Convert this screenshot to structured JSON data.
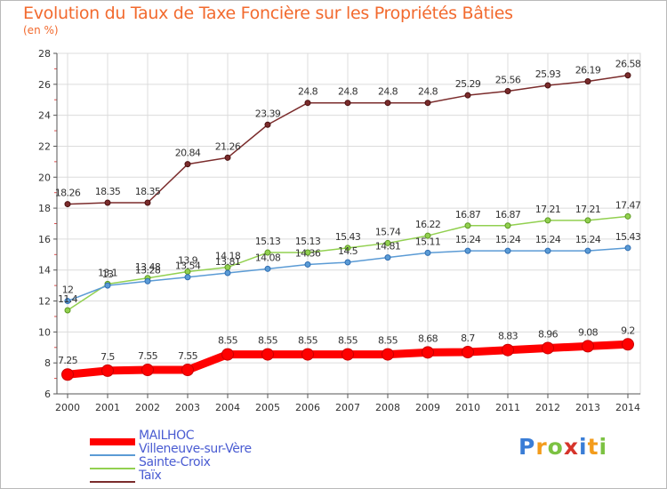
{
  "title": "Evolution du Taux de Taxe Foncière sur les Propriétés Bâties",
  "unit_label": "(en %)",
  "logo": {
    "text": "Proxiti",
    "colors": [
      "#3a7dd6",
      "#f39c1c",
      "#7cc242",
      "#d6342b",
      "#3a7dd6",
      "#f39c1c",
      "#7cc242"
    ]
  },
  "chart_data": {
    "type": "line",
    "title": "Evolution du Taux de Taxe Foncière sur les Propriétés Bâties",
    "ylabel": "(en %)",
    "xlabel": "",
    "x": [
      "2000",
      "2001",
      "2002",
      "2003",
      "2004",
      "2005",
      "2006",
      "2007",
      "2008",
      "2009",
      "2010",
      "2011",
      "2012",
      "2013",
      "2014"
    ],
    "ylim": [
      6,
      28
    ],
    "yticks": [
      6,
      8,
      10,
      12,
      14,
      16,
      18,
      20,
      22,
      24,
      26,
      28
    ],
    "grid": true,
    "legend_position": "bottom-left",
    "series": [
      {
        "name": "MAILHOC",
        "color": "#ff0000",
        "values": [
          7.25,
          7.5,
          7.55,
          7.55,
          8.55,
          8.55,
          8.55,
          8.55,
          8.55,
          8.68,
          8.7,
          8.83,
          8.96,
          9.08,
          9.2
        ],
        "labels": [
          "7.25",
          "7.5",
          "7.55",
          "7.55",
          "8.55",
          "8.55",
          "8.55",
          "8.55",
          "8.55",
          "8.68",
          "8.7",
          "8.83",
          "8.96",
          "9.08",
          "9.2"
        ]
      },
      {
        "name": "Villeneuve-sur-Vère",
        "color": "#5b9bd5",
        "values": [
          12,
          13,
          13.28,
          13.54,
          13.81,
          14.08,
          14.36,
          14.5,
          14.81,
          15.11,
          15.24,
          15.24,
          15.24,
          15.24,
          15.43
        ],
        "labels": [
          "12",
          "13",
          "13.28",
          "13.54",
          "13.81",
          "14.08",
          "14.36",
          "14.5",
          "14.81",
          "15.11",
          "15.24",
          "15.24",
          "15.24",
          "15.24",
          "15.43"
        ]
      },
      {
        "name": "Sainte-Croix",
        "color": "#92d050",
        "values": [
          11.4,
          13.1,
          13.48,
          13.9,
          14.18,
          15.13,
          15.13,
          15.43,
          15.74,
          16.22,
          16.87,
          16.87,
          17.21,
          17.21,
          17.47
        ],
        "labels": [
          "11.4",
          "13.1",
          "13.48",
          "13.9",
          "14.18",
          "15.13",
          "15.13",
          "15.43",
          "15.74",
          "16.22",
          "16.87",
          "16.87",
          "17.21",
          "17.21",
          "17.47"
        ]
      },
      {
        "name": "Taïx",
        "color": "#7b2c2c",
        "values": [
          18.26,
          18.35,
          18.35,
          20.84,
          21.26,
          23.39,
          24.8,
          24.8,
          24.8,
          24.8,
          25.29,
          25.56,
          25.93,
          26.19,
          26.58
        ],
        "labels": [
          "18.26",
          "18.35",
          "18.35",
          "20.84",
          "21.26",
          "23.39",
          "24.8",
          "24.8",
          "24.8",
          "24.8",
          "25.29",
          "25.56",
          "25.93",
          "26.19",
          "26.58"
        ]
      }
    ]
  }
}
